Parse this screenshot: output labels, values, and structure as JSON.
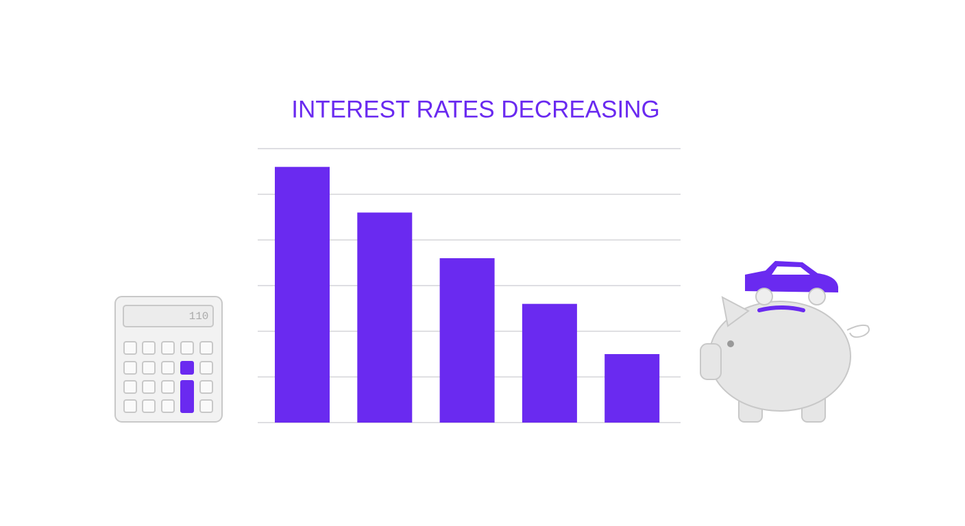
{
  "chart_data": {
    "type": "bar",
    "title": "INTEREST RATES DECREASING",
    "categories": [
      null,
      null,
      null,
      null,
      null
    ],
    "values": [
      5.6,
      4.6,
      3.6,
      2.6,
      1.5
    ],
    "color": "#6a2af0",
    "ylim": [
      0,
      6
    ],
    "yticks": [
      0,
      1,
      2,
      3,
      4,
      5,
      6
    ],
    "grid": true,
    "annotations": [
      "110"
    ]
  }
}
